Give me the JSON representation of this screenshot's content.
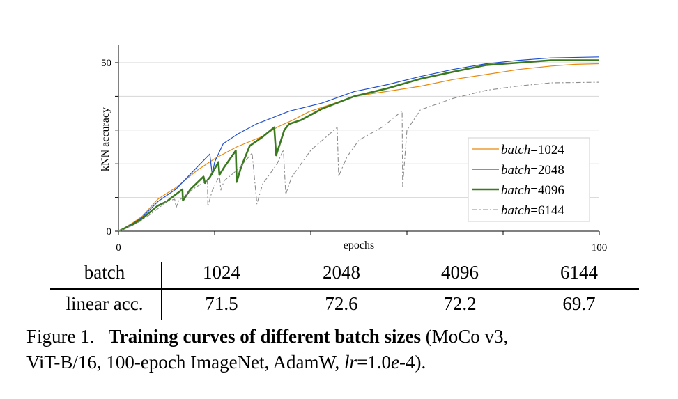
{
  "chart_data": {
    "type": "line",
    "xlabel": "epochs",
    "ylabel": "kNN accuracy",
    "xlim": [
      0,
      100
    ],
    "ylim": [
      0,
      55
    ],
    "x_ticks": [
      0,
      20,
      40,
      60,
      80,
      100
    ],
    "x_tick_labels": [
      "0",
      "",
      "",
      "",
      "",
      "100"
    ],
    "y_ticks": [
      0,
      10,
      20,
      30,
      40,
      50
    ],
    "y_tick_labels": [
      "0",
      "",
      "",
      "",
      "",
      "50"
    ],
    "grid": "horizontal",
    "legend_position": "bottom-right",
    "series": [
      {
        "name": "batch=1024",
        "color": "#e8890c",
        "style": "solid-thin",
        "points": [
          [
            0,
            0
          ],
          [
            3,
            2.5
          ],
          [
            5,
            4.5
          ],
          [
            8.2,
            9.5
          ],
          [
            12,
            13
          ],
          [
            16.3,
            18
          ],
          [
            20,
            21.5
          ],
          [
            24.6,
            25
          ],
          [
            29.7,
            28
          ],
          [
            33.2,
            31
          ],
          [
            36.3,
            33
          ],
          [
            39.7,
            35.5
          ],
          [
            45,
            38
          ],
          [
            49,
            40
          ],
          [
            56,
            41.5
          ],
          [
            62.8,
            43
          ],
          [
            69.6,
            45
          ],
          [
            76.5,
            46.5
          ],
          [
            83.3,
            48
          ],
          [
            90,
            49
          ],
          [
            95,
            49.5
          ],
          [
            100,
            49.7
          ]
        ]
      },
      {
        "name": "batch=2048",
        "color": "#1f4fd1",
        "style": "solid-thin",
        "points": [
          [
            0,
            0
          ],
          [
            3,
            2.3
          ],
          [
            5,
            4.2
          ],
          [
            8.2,
            8.8
          ],
          [
            12,
            12.5
          ],
          [
            15,
            17
          ],
          [
            19,
            22.9
          ],
          [
            19.5,
            16.7
          ],
          [
            20,
            20.5
          ],
          [
            21.8,
            26
          ],
          [
            25,
            29
          ],
          [
            28.7,
            31.8
          ],
          [
            35.5,
            35.6
          ],
          [
            42.3,
            38
          ],
          [
            49,
            41.4
          ],
          [
            56,
            43.5
          ],
          [
            62.8,
            45.9
          ],
          [
            69.6,
            48
          ],
          [
            76.5,
            49.7
          ],
          [
            83.3,
            50.7
          ],
          [
            90,
            51.4
          ],
          [
            100,
            51.7
          ]
        ]
      },
      {
        "name": "batch=4096",
        "color": "#3a7a1f",
        "style": "solid-thick",
        "points": [
          [
            0,
            0
          ],
          [
            3,
            2
          ],
          [
            5,
            3.8
          ],
          [
            8.1,
            7.5
          ],
          [
            10,
            8.8
          ],
          [
            13.3,
            12.4
          ],
          [
            13.4,
            9.1
          ],
          [
            15,
            12.5
          ],
          [
            17.7,
            16.2
          ],
          [
            18,
            14.3
          ],
          [
            19,
            16
          ],
          [
            20.8,
            20.5
          ],
          [
            21,
            16.7
          ],
          [
            22,
            19
          ],
          [
            24.4,
            23.9
          ],
          [
            24.6,
            14.6
          ],
          [
            25.5,
            19
          ],
          [
            27.3,
            25.3
          ],
          [
            30,
            28
          ],
          [
            32.4,
            30.8
          ],
          [
            32.8,
            22.5
          ],
          [
            34.5,
            30
          ],
          [
            35.5,
            31.8
          ],
          [
            38,
            33
          ],
          [
            42.3,
            36.3
          ],
          [
            49,
            40
          ],
          [
            56,
            42.4
          ],
          [
            62.8,
            45.2
          ],
          [
            69.6,
            47.3
          ],
          [
            76.5,
            49.3
          ],
          [
            83.3,
            50
          ],
          [
            90,
            50.7
          ],
          [
            100,
            50.7
          ]
        ]
      },
      {
        "name": "batch=6144",
        "color": "#8c8c8c",
        "style": "dash-dot",
        "points": [
          [
            0,
            0
          ],
          [
            3,
            1.8
          ],
          [
            5,
            3.3
          ],
          [
            8.2,
            6.7
          ],
          [
            10,
            8.8
          ],
          [
            11.7,
            9.5
          ],
          [
            12,
            7
          ],
          [
            12.5,
            9
          ],
          [
            16,
            13
          ],
          [
            18.5,
            15
          ],
          [
            18.6,
            7.4
          ],
          [
            19.5,
            12
          ],
          [
            21,
            16.5
          ],
          [
            21.3,
            12.2
          ],
          [
            22,
            15
          ],
          [
            25,
            18.5
          ],
          [
            27.8,
            23.2
          ],
          [
            28.8,
            8.1
          ],
          [
            30,
            14
          ],
          [
            33,
            20
          ],
          [
            34.3,
            24.2
          ],
          [
            34.8,
            10.9
          ],
          [
            36,
            16
          ],
          [
            40,
            24
          ],
          [
            45.5,
            30.8
          ],
          [
            45.8,
            16.3
          ],
          [
            47.5,
            22
          ],
          [
            50,
            27
          ],
          [
            55,
            31
          ],
          [
            59,
            35.7
          ],
          [
            59.1,
            13.3
          ],
          [
            60,
            30
          ],
          [
            62.8,
            36
          ],
          [
            69.6,
            39.4
          ],
          [
            76.5,
            41.8
          ],
          [
            83.3,
            43.1
          ],
          [
            90,
            44
          ],
          [
            100,
            44.2
          ]
        ]
      }
    ]
  },
  "table": {
    "header_label": "batch",
    "row_label": "linear acc.",
    "columns": [
      "1024",
      "2048",
      "4096",
      "6144"
    ],
    "values": [
      "71.5",
      "72.6",
      "72.2",
      "69.7"
    ]
  },
  "caption": {
    "prefix": "Figure 1.",
    "title": "Training curves of different batch sizes",
    "line1_rest": "(MoCo v3,",
    "line2_a": "ViT-B/16, 100-epoch ImageNet, AdamW, ",
    "lr": "lr",
    "eq": "=1.0",
    "e": "e",
    "tail": "-4)."
  }
}
